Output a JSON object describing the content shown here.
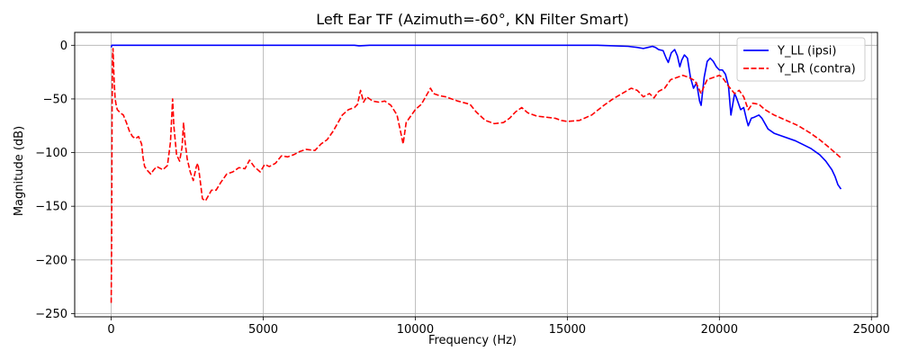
{
  "chart_data": {
    "type": "line",
    "title": "Left Ear TF (Azimuth=-60°, KN Filter Smart)",
    "xlabel": "Frequency (Hz)",
    "ylabel": "Magnitude (dB)",
    "xlim": [
      -1200,
      25200
    ],
    "ylim": [
      -253,
      12
    ],
    "x_ticks": [
      0,
      5000,
      10000,
      15000,
      20000,
      25000
    ],
    "y_ticks": [
      0,
      -50,
      -100,
      -150,
      -200,
      -250
    ],
    "grid": true,
    "legend_position": "top-right",
    "series": [
      {
        "name": "Y_LL (ipsi)",
        "color": "#0000ff",
        "dash": "solid",
        "points": [
          [
            0,
            -2
          ],
          [
            20,
            0
          ],
          [
            100,
            0
          ],
          [
            2000,
            0
          ],
          [
            5000,
            0
          ],
          [
            8000,
            0
          ],
          [
            8150,
            -0.5
          ],
          [
            8300,
            -0.3
          ],
          [
            8500,
            0
          ],
          [
            10000,
            0
          ],
          [
            14000,
            0
          ],
          [
            16000,
            0
          ],
          [
            17000,
            -1
          ],
          [
            17300,
            -2
          ],
          [
            17500,
            -3
          ],
          [
            17650,
            -2
          ],
          [
            17800,
            -1
          ],
          [
            17900,
            -2
          ],
          [
            18000,
            -4
          ],
          [
            18150,
            -5
          ],
          [
            18250,
            -12
          ],
          [
            18320,
            -16
          ],
          [
            18420,
            -7
          ],
          [
            18530,
            -4
          ],
          [
            18620,
            -10
          ],
          [
            18700,
            -20
          ],
          [
            18760,
            -14
          ],
          [
            18850,
            -9
          ],
          [
            18950,
            -12
          ],
          [
            19050,
            -30
          ],
          [
            19150,
            -40
          ],
          [
            19250,
            -35
          ],
          [
            19350,
            -52
          ],
          [
            19400,
            -56
          ],
          [
            19500,
            -30
          ],
          [
            19600,
            -15
          ],
          [
            19700,
            -12
          ],
          [
            19800,
            -15
          ],
          [
            19900,
            -20
          ],
          [
            20000,
            -23
          ],
          [
            20100,
            -23
          ],
          [
            20200,
            -27
          ],
          [
            20300,
            -38
          ],
          [
            20380,
            -65
          ],
          [
            20500,
            -45
          ],
          [
            20550,
            -48
          ],
          [
            20700,
            -60
          ],
          [
            20800,
            -58
          ],
          [
            20900,
            -70
          ],
          [
            20950,
            -75
          ],
          [
            21050,
            -68
          ],
          [
            21150,
            -67
          ],
          [
            21300,
            -65
          ],
          [
            21400,
            -68
          ],
          [
            21600,
            -78
          ],
          [
            21800,
            -82
          ],
          [
            22000,
            -84
          ],
          [
            22500,
            -89
          ],
          [
            23000,
            -96
          ],
          [
            23300,
            -102
          ],
          [
            23500,
            -108
          ],
          [
            23700,
            -116
          ],
          [
            23800,
            -122
          ],
          [
            23900,
            -130
          ],
          [
            24000,
            -134
          ]
        ]
      },
      {
        "name": "Y_LR (contra)",
        "color": "#ff0000",
        "dash": "dashed",
        "points": [
          [
            0,
            -240
          ],
          [
            15,
            -180
          ],
          [
            30,
            -60
          ],
          [
            45,
            -10
          ],
          [
            60,
            -3
          ],
          [
            80,
            -20
          ],
          [
            100,
            -35
          ],
          [
            130,
            -50
          ],
          [
            160,
            -55
          ],
          [
            200,
            -60
          ],
          [
            300,
            -63
          ],
          [
            400,
            -65
          ],
          [
            500,
            -72
          ],
          [
            600,
            -80
          ],
          [
            700,
            -85
          ],
          [
            800,
            -87
          ],
          [
            900,
            -85
          ],
          [
            1000,
            -92
          ],
          [
            1050,
            -105
          ],
          [
            1100,
            -113
          ],
          [
            1200,
            -117
          ],
          [
            1300,
            -120
          ],
          [
            1400,
            -116
          ],
          [
            1500,
            -113
          ],
          [
            1700,
            -116
          ],
          [
            1850,
            -112
          ],
          [
            1950,
            -90
          ],
          [
            2020,
            -50
          ],
          [
            2060,
            -75
          ],
          [
            2150,
            -102
          ],
          [
            2250,
            -108
          ],
          [
            2330,
            -95
          ],
          [
            2380,
            -72
          ],
          [
            2430,
            -90
          ],
          [
            2500,
            -106
          ],
          [
            2600,
            -118
          ],
          [
            2700,
            -126
          ],
          [
            2800,
            -113
          ],
          [
            2850,
            -110
          ],
          [
            2900,
            -120
          ],
          [
            3000,
            -143
          ],
          [
            3100,
            -145
          ],
          [
            3200,
            -140
          ],
          [
            3300,
            -135
          ],
          [
            3450,
            -135
          ],
          [
            3600,
            -128
          ],
          [
            3800,
            -120
          ],
          [
            4000,
            -118
          ],
          [
            4200,
            -114
          ],
          [
            4400,
            -115
          ],
          [
            4550,
            -107
          ],
          [
            4700,
            -113
          ],
          [
            4900,
            -118
          ],
          [
            5050,
            -111
          ],
          [
            5200,
            -113
          ],
          [
            5400,
            -110
          ],
          [
            5600,
            -103
          ],
          [
            5800,
            -104
          ],
          [
            6000,
            -102
          ],
          [
            6200,
            -99
          ],
          [
            6400,
            -97
          ],
          [
            6700,
            -98
          ],
          [
            6900,
            -92
          ],
          [
            7100,
            -88
          ],
          [
            7300,
            -80
          ],
          [
            7600,
            -65
          ],
          [
            7800,
            -60
          ],
          [
            8000,
            -58
          ],
          [
            8100,
            -55
          ],
          [
            8200,
            -42
          ],
          [
            8300,
            -53
          ],
          [
            8400,
            -48
          ],
          [
            8600,
            -52
          ],
          [
            8800,
            -53
          ],
          [
            9000,
            -52
          ],
          [
            9200,
            -56
          ],
          [
            9400,
            -65
          ],
          [
            9550,
            -85
          ],
          [
            9600,
            -92
          ],
          [
            9700,
            -72
          ],
          [
            9800,
            -68
          ],
          [
            10000,
            -60
          ],
          [
            10200,
            -55
          ],
          [
            10400,
            -45
          ],
          [
            10500,
            -40
          ],
          [
            10600,
            -45
          ],
          [
            10800,
            -47
          ],
          [
            11000,
            -48
          ],
          [
            11400,
            -52
          ],
          [
            11800,
            -55
          ],
          [
            12000,
            -62
          ],
          [
            12300,
            -70
          ],
          [
            12600,
            -73
          ],
          [
            12900,
            -72
          ],
          [
            13100,
            -68
          ],
          [
            13300,
            -62
          ],
          [
            13500,
            -58
          ],
          [
            13700,
            -63
          ],
          [
            14000,
            -66
          ],
          [
            14300,
            -67
          ],
          [
            14600,
            -68
          ],
          [
            14800,
            -70
          ],
          [
            15000,
            -71
          ],
          [
            15400,
            -70
          ],
          [
            15800,
            -65
          ],
          [
            16200,
            -56
          ],
          [
            16500,
            -50
          ],
          [
            16800,
            -45
          ],
          [
            17100,
            -40
          ],
          [
            17300,
            -42
          ],
          [
            17500,
            -48
          ],
          [
            17700,
            -45
          ],
          [
            17850,
            -49
          ],
          [
            18000,
            -43
          ],
          [
            18200,
            -40
          ],
          [
            18400,
            -32
          ],
          [
            18600,
            -30
          ],
          [
            18800,
            -28
          ],
          [
            19000,
            -30
          ],
          [
            19200,
            -33
          ],
          [
            19400,
            -45
          ],
          [
            19500,
            -38
          ],
          [
            19600,
            -32
          ],
          [
            19800,
            -30
          ],
          [
            20000,
            -28
          ],
          [
            20100,
            -30
          ],
          [
            20300,
            -38
          ],
          [
            20500,
            -45
          ],
          [
            20650,
            -42
          ],
          [
            20800,
            -48
          ],
          [
            20950,
            -60
          ],
          [
            21100,
            -54
          ],
          [
            21300,
            -55
          ],
          [
            21500,
            -60
          ],
          [
            21800,
            -65
          ],
          [
            22200,
            -70
          ],
          [
            22600,
            -75
          ],
          [
            23000,
            -82
          ],
          [
            23300,
            -88
          ],
          [
            23600,
            -95
          ],
          [
            23800,
            -100
          ],
          [
            24000,
            -105
          ]
        ]
      }
    ]
  }
}
